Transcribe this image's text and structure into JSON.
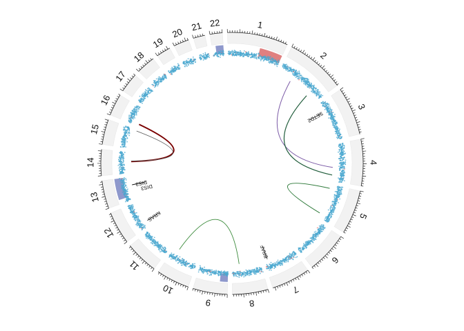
{
  "chart_data": {
    "type": "circos",
    "title": "",
    "chromosomes": [
      {
        "name": "1",
        "length": 249
      },
      {
        "name": "2",
        "length": 243
      },
      {
        "name": "3",
        "length": 198
      },
      {
        "name": "4",
        "length": 191
      },
      {
        "name": "5",
        "length": 181
      },
      {
        "name": "6",
        "length": 171
      },
      {
        "name": "7",
        "length": 159
      },
      {
        "name": "8",
        "length": 146
      },
      {
        "name": "9",
        "length": 141
      },
      {
        "name": "10",
        "length": 136
      },
      {
        "name": "11",
        "length": 135
      },
      {
        "name": "12",
        "length": 134
      },
      {
        "name": "13",
        "length": 115
      },
      {
        "name": "14",
        "length": 107
      },
      {
        "name": "15",
        "length": 103
      },
      {
        "name": "16",
        "length": 90
      },
      {
        "name": "17",
        "length": 81
      },
      {
        "name": "18",
        "length": 78
      },
      {
        "name": "19",
        "length": 59
      },
      {
        "name": "20",
        "length": 63
      },
      {
        "name": "21",
        "length": 48
      },
      {
        "name": "22",
        "length": 51
      }
    ],
    "cnv_segments": [
      {
        "chr": "1",
        "start": 145,
        "end": 249,
        "state": "gain",
        "color": "#e08080"
      },
      {
        "chr": "13",
        "start": 19,
        "end": 115,
        "state": "loss",
        "color": "#8e98cc"
      },
      {
        "chr": "9",
        "start": 0,
        "end": 35,
        "state": "loss",
        "color": "#8e98cc"
      },
      {
        "chr": "22",
        "start": 16,
        "end": 51,
        "state": "loss",
        "color": "#8e98cc"
      }
    ],
    "gene_labels": [
      {
        "name": "SETD2",
        "chr": "3",
        "pos": 47
      },
      {
        "name": "BRAF",
        "chr": "7",
        "pos": 140
      },
      {
        "name": "KRAS",
        "chr": "12",
        "pos": 25
      },
      {
        "name": "DIS3",
        "chr": "13",
        "pos": 73
      },
      {
        "name": "DIS3",
        "chr": "13",
        "pos": 74
      }
    ],
    "links": [
      {
        "chr1": "2",
        "pos1": 75,
        "chr2": "4",
        "pos2": 120,
        "color": "#7b5aa6",
        "width": 1
      },
      {
        "chr1": "2",
        "pos1": 190,
        "chr2": "4",
        "pos2": 160,
        "color": "#1f5c3a",
        "width": 1.2
      },
      {
        "chr1": "5",
        "pos1": 20,
        "chr2": "5",
        "pos2": 160,
        "color": "#2e7a3a",
        "width": 1
      },
      {
        "chr1": "8",
        "pos1": 110,
        "chr2": "10",
        "pos2": 110,
        "color": "#3a8a3a",
        "width": 0.9
      },
      {
        "chr1": "14",
        "pos1": 60,
        "chr2": "16",
        "pos2": 10,
        "color": "#7a0000",
        "width": 2
      },
      {
        "chr1": "14",
        "pos1": 62,
        "chr2": "15",
        "pos2": 96,
        "color": "#555555",
        "width": 0.8
      }
    ],
    "track_colors": {
      "ideogram": "#f2f2f2",
      "points": "#4aa8cf",
      "points_alt": "#e07070"
    }
  }
}
